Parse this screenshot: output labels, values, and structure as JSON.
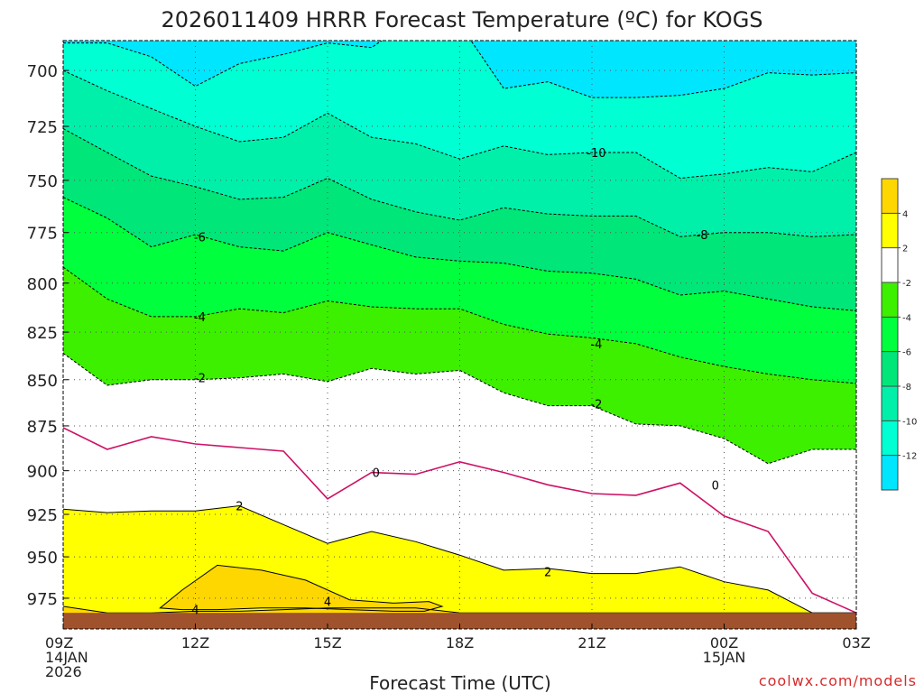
{
  "chart_data": {
    "type": "heatmap",
    "title": "2026011409 HRRR Forecast Temperature (ºC) for KOGS",
    "xlabel": "Forecast Time (UTC)",
    "credit": "coolwx.com/models",
    "x_ticks": [
      {
        "hour": 0,
        "lines": [
          "09Z",
          "14JAN",
          "2026"
        ]
      },
      {
        "hour": 3,
        "lines": [
          "12Z"
        ]
      },
      {
        "hour": 6,
        "lines": [
          "15Z"
        ]
      },
      {
        "hour": 9,
        "lines": [
          "18Z"
        ]
      },
      {
        "hour": 12,
        "lines": [
          "21Z"
        ]
      },
      {
        "hour": 15,
        "lines": [
          "00Z",
          "15JAN"
        ]
      },
      {
        "hour": 18,
        "lines": [
          "03Z"
        ]
      }
    ],
    "xlim": [
      0,
      18
    ],
    "y_axis": {
      "unit": "hPa",
      "scale": "log-pressure",
      "ticks": [
        700,
        725,
        750,
        775,
        800,
        825,
        850,
        875,
        900,
        925,
        950,
        975
      ],
      "range": [
        687,
        994
      ]
    },
    "grid": true,
    "surface_pressure_hPa": 984,
    "color_levels": [
      {
        "range": "< -12",
        "color": "#00e6ff"
      },
      {
        "range": "-12 to -10",
        "color": "#00ffd2"
      },
      {
        "range": "-10 to -8",
        "color": "#00f0aa"
      },
      {
        "range": "-8 to -6",
        "color": "#00e678"
      },
      {
        "range": "-6 to -4",
        "color": "#00ff3c"
      },
      {
        "range": "-4 to -2",
        "color": "#3cf000"
      },
      {
        "range": "-2 to 2",
        "color": "#ffffff"
      },
      {
        "range": "2 to 4",
        "color": "#ffff00"
      },
      {
        "range": "> 4",
        "color": "#ffd700"
      }
    ],
    "colorbar_labels": [
      "4",
      "2",
      "-2",
      "-4",
      "-6",
      "-8",
      "-10",
      "-12"
    ],
    "isotherms": [
      {
        "level": -12,
        "style": "dashed",
        "color": "#000000",
        "x": [
          0,
          1,
          2,
          3,
          4,
          5,
          6,
          7,
          8,
          9,
          10,
          11,
          12,
          13,
          14,
          15,
          16,
          17,
          18
        ],
        "y": [
          688,
          688,
          694,
          707,
          697,
          693,
          688,
          690,
          677,
          680,
          708,
          705,
          712,
          712,
          711,
          708,
          701,
          702,
          701
        ]
      },
      {
        "level": -10,
        "style": "dashed",
        "color": "#000000",
        "x": [
          0,
          1,
          2,
          3,
          4,
          5,
          6,
          7,
          8,
          9,
          10,
          11,
          12,
          13,
          14,
          15,
          16,
          17,
          18
        ],
        "y": [
          700,
          709,
          717,
          725,
          732,
          730,
          719,
          730,
          733,
          740,
          734,
          738,
          737,
          737,
          749,
          747,
          744,
          746,
          737
        ]
      },
      {
        "level": -8,
        "style": "dashed",
        "color": "#000000",
        "x": [
          0,
          1,
          2,
          3,
          4,
          5,
          6,
          7,
          8,
          9,
          10,
          11,
          12,
          13,
          14,
          15,
          16,
          17,
          18
        ],
        "y": [
          726,
          737,
          748,
          753,
          759,
          758,
          749,
          759,
          765,
          769,
          763,
          766,
          767,
          767,
          777,
          775,
          775,
          777,
          776
        ]
      },
      {
        "level": -6,
        "style": "dashed",
        "color": "#000000",
        "x": [
          0,
          1,
          2,
          3,
          4,
          5,
          6,
          7,
          8,
          9,
          10,
          11,
          12,
          13,
          14,
          15,
          16,
          17,
          18
        ],
        "y": [
          758,
          768,
          782,
          776,
          782,
          784,
          775,
          781,
          787,
          789,
          790,
          794,
          795,
          798,
          806,
          804,
          808,
          812,
          814
        ]
      },
      {
        "level": -4,
        "style": "dashed",
        "color": "#000000",
        "x": [
          0,
          1,
          2,
          3,
          4,
          5,
          6,
          7,
          8,
          9,
          10,
          11,
          12,
          13,
          14,
          15,
          16,
          17,
          18
        ],
        "y": [
          792,
          808,
          817,
          817,
          813,
          815,
          809,
          812,
          813,
          813,
          821,
          826,
          828,
          831,
          838,
          843,
          847,
          850,
          852
        ]
      },
      {
        "level": -2,
        "style": "dashed",
        "color": "#000000",
        "x": [
          0,
          1,
          2,
          3,
          4,
          5,
          6,
          7,
          8,
          9,
          10,
          11,
          12,
          13,
          14,
          15,
          16,
          17,
          18
        ],
        "y": [
          836,
          853,
          850,
          850,
          849,
          847,
          851,
          844,
          847,
          845,
          857,
          864,
          864,
          874,
          875,
          882,
          896,
          888,
          888
        ]
      },
      {
        "level": 0,
        "style": "solid",
        "color": "#cc1166",
        "x": [
          0,
          1,
          2,
          3,
          4,
          5,
          6,
          7,
          8,
          9,
          10,
          11,
          12,
          13,
          14,
          15,
          16,
          17,
          18
        ],
        "y": [
          876,
          888,
          881,
          885,
          887,
          889,
          916,
          901,
          902,
          895,
          901,
          908,
          913,
          914,
          907,
          926,
          935,
          972,
          984
        ]
      },
      {
        "level": 2,
        "style": "solid",
        "color": "#000000",
        "x": [
          0,
          1,
          2,
          3,
          4,
          5,
          6,
          7,
          8,
          9,
          10,
          11,
          12,
          13,
          14,
          15,
          16,
          17,
          18
        ],
        "y": [
          922,
          924,
          923,
          923,
          920,
          931,
          942,
          935,
          941,
          949,
          958,
          957,
          960,
          960,
          956,
          965,
          970,
          984,
          984
        ]
      },
      {
        "level": 4,
        "style": "solid",
        "color": "#000000",
        "x": [
          0,
          1,
          2,
          3,
          4,
          5,
          6,
          7,
          8,
          9,
          10,
          11,
          12,
          13,
          14,
          15,
          16,
          17,
          18
        ],
        "y": [
          980,
          984,
          984,
          983,
          983,
          982,
          981,
          981,
          981,
          984,
          984,
          984,
          984,
          984,
          984,
          984,
          984,
          984,
          984
        ]
      }
    ],
    "warm_pocket_4C": {
      "x": [
        2.2,
        2.7,
        3.5,
        4.5,
        5.5,
        6.5,
        7.5,
        8.3,
        8.6,
        8.2,
        7.5,
        6.5,
        5.5,
        4.5,
        3.5,
        2.7,
        2.2
      ],
      "y": [
        981,
        970,
        955,
        958,
        964,
        976,
        978,
        977,
        980,
        983,
        983,
        982,
        981,
        981,
        982,
        982,
        981
      ]
    },
    "contour_labels": [
      {
        "text": "-10",
        "x": 12.1,
        "y": 737
      },
      {
        "text": "-8",
        "x": 14.5,
        "y": 776
      },
      {
        "text": "-6",
        "x": 3.1,
        "y": 777
      },
      {
        "text": "-4",
        "x": 3.1,
        "y": 817
      },
      {
        "text": "-4",
        "x": 12.1,
        "y": 831
      },
      {
        "text": "-2",
        "x": 3.1,
        "y": 849
      },
      {
        "text": "-2",
        "x": 12.1,
        "y": 863
      },
      {
        "text": "0",
        "x": 7.1,
        "y": 901
      },
      {
        "text": "0",
        "x": 14.8,
        "y": 908
      },
      {
        "text": "2",
        "x": 4.0,
        "y": 920
      },
      {
        "text": "2",
        "x": 11.0,
        "y": 959
      },
      {
        "text": "4",
        "x": 6.0,
        "y": 977
      },
      {
        "text": "4",
        "x": 3.0,
        "y": 982
      }
    ]
  }
}
